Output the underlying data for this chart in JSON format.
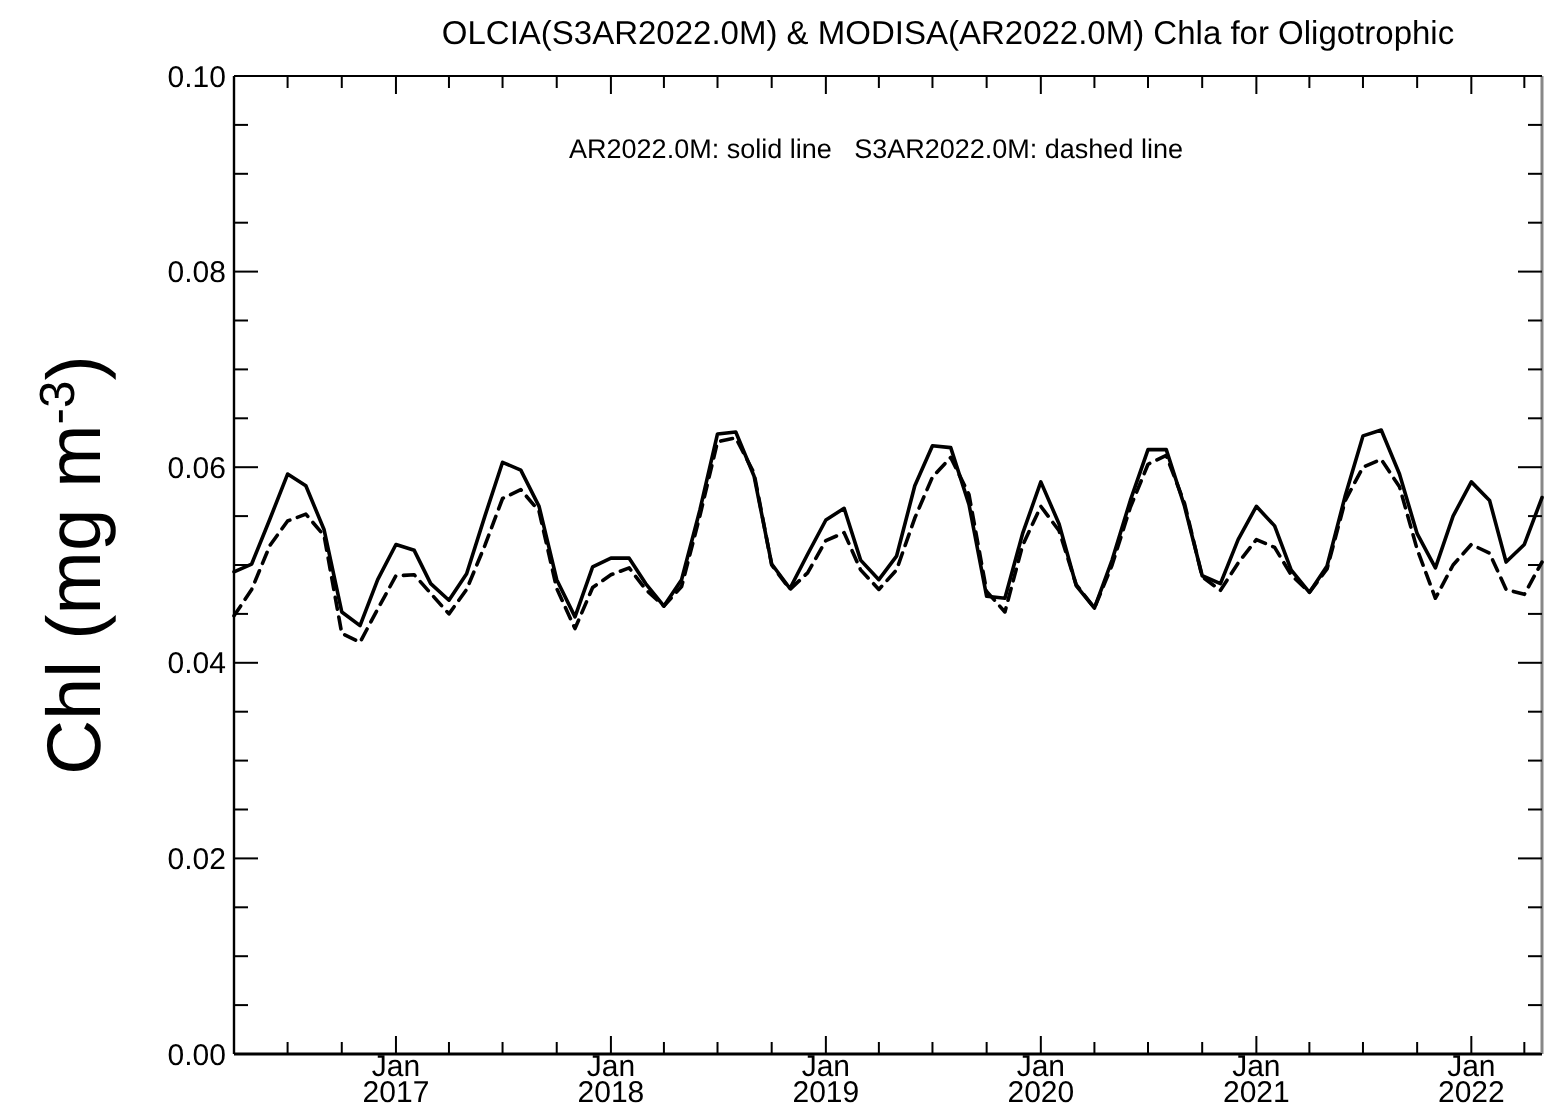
{
  "chart_data": {
    "type": "line",
    "title": "OLCIA(S3AR2022.0M) & MODISA(AR2022.0M)  Chla for Oligotrophic",
    "ylabel": "Chl (mg m$^{-3}$)",
    "annotations": [
      "AR2022.0M: solid line   S3AR2022.0M: dashed line"
    ],
    "x": [
      "2016-04",
      "2016-05",
      "2016-06",
      "2016-07",
      "2016-08",
      "2016-09",
      "2016-10",
      "2016-11",
      "2016-12",
      "2017-01",
      "2017-02",
      "2017-03",
      "2017-04",
      "2017-05",
      "2017-06",
      "2017-07",
      "2017-08",
      "2017-09",
      "2017-10",
      "2017-11",
      "2017-12",
      "2018-01",
      "2018-02",
      "2018-03",
      "2018-04",
      "2018-05",
      "2018-06",
      "2018-07",
      "2018-08",
      "2018-09",
      "2018-10",
      "2018-11",
      "2018-12",
      "2019-01",
      "2019-02",
      "2019-03",
      "2019-04",
      "2019-05",
      "2019-06",
      "2019-07",
      "2019-08",
      "2019-09",
      "2019-10",
      "2019-11",
      "2019-12",
      "2020-01",
      "2020-02",
      "2020-03",
      "2020-04",
      "2020-05",
      "2020-06",
      "2020-07",
      "2020-08",
      "2020-09",
      "2020-10",
      "2020-11",
      "2020-12",
      "2021-01",
      "2021-02",
      "2021-03",
      "2021-04",
      "2021-05",
      "2021-06",
      "2021-07",
      "2021-08",
      "2021-09",
      "2021-10",
      "2021-11",
      "2021-12",
      "2022-01",
      "2022-02",
      "2022-03",
      "2022-04",
      "2022-05"
    ],
    "series": [
      {
        "color": "#000000",
        "line_style": "solid",
        "values": [
          0.0493,
          0.0501,
          0.0547,
          0.0593,
          0.0581,
          0.0536,
          0.0452,
          0.0438,
          0.0485,
          0.0521,
          0.0515,
          0.0481,
          0.0464,
          0.0491,
          0.055,
          0.0605,
          0.0597,
          0.056,
          0.0485,
          0.0447,
          0.0498,
          0.0507,
          0.0507,
          0.0481,
          0.0458,
          0.0485,
          0.0556,
          0.0634,
          0.0636,
          0.0591,
          0.0501,
          0.0476,
          0.0511,
          0.0546,
          0.0558,
          0.0505,
          0.0485,
          0.0509,
          0.0581,
          0.0622,
          0.062,
          0.0562,
          0.0468,
          0.0466,
          0.0532,
          0.0585,
          0.0542,
          0.0479,
          0.0456,
          0.0505,
          0.0566,
          0.0618,
          0.0618,
          0.056,
          0.0489,
          0.0481,
          0.0526,
          0.056,
          0.054,
          0.0495,
          0.0472,
          0.0499,
          0.0571,
          0.0632,
          0.0638,
          0.0593,
          0.0532,
          0.0497,
          0.055,
          0.0585,
          0.0566,
          0.0503,
          0.0521,
          0.0569
        ]
      },
      {
        "color": "#000000",
        "line_style": "dashed",
        "values": [
          0.0448,
          0.0475,
          0.052,
          0.0545,
          0.0552,
          0.053,
          0.043,
          0.0421,
          0.0455,
          0.0489,
          0.049,
          0.0471,
          0.045,
          0.0475,
          0.052,
          0.0568,
          0.0577,
          0.0555,
          0.0476,
          0.0435,
          0.0477,
          0.049,
          0.0497,
          0.0475,
          0.0458,
          0.0478,
          0.055,
          0.0626,
          0.063,
          0.0594,
          0.05,
          0.0475,
          0.0492,
          0.0525,
          0.0533,
          0.0495,
          0.0475,
          0.0495,
          0.0548,
          0.059,
          0.061,
          0.0572,
          0.0473,
          0.0452,
          0.052,
          0.056,
          0.0535,
          0.048,
          0.0456,
          0.05,
          0.0559,
          0.0603,
          0.0612,
          0.0563,
          0.0488,
          0.0474,
          0.0502,
          0.0526,
          0.0518,
          0.049,
          0.0472,
          0.0496,
          0.0566,
          0.06,
          0.0608,
          0.058,
          0.0516,
          0.0466,
          0.05,
          0.0521,
          0.0512,
          0.0475,
          0.047,
          0.0503
        ]
      }
    ],
    "xlim": [
      "2016-04",
      "2022-05"
    ],
    "xticks": [
      {
        "value": "2016-07",
        "label": null
      },
      {
        "value": "2016-10",
        "label": null
      },
      {
        "value": "2017-01",
        "label": "Jan\n2017"
      },
      {
        "value": "2017-04",
        "label": null
      },
      {
        "value": "2017-07",
        "label": null
      },
      {
        "value": "2017-10",
        "label": null
      },
      {
        "value": "2018-01",
        "label": "Jan\n2018"
      },
      {
        "value": "2018-04",
        "label": null
      },
      {
        "value": "2018-07",
        "label": null
      },
      {
        "value": "2018-10",
        "label": null
      },
      {
        "value": "2019-01",
        "label": "Jan\n2019"
      },
      {
        "value": "2019-04",
        "label": null
      },
      {
        "value": "2019-07",
        "label": null
      },
      {
        "value": "2019-10",
        "label": null
      },
      {
        "value": "2020-01",
        "label": "Jan\n2020"
      },
      {
        "value": "2020-04",
        "label": null
      },
      {
        "value": "2020-07",
        "label": null
      },
      {
        "value": "2020-10",
        "label": null
      },
      {
        "value": "2021-01",
        "label": "Jan\n2021"
      },
      {
        "value": "2021-04",
        "label": null
      },
      {
        "value": "2021-07",
        "label": null
      },
      {
        "value": "2021-10",
        "label": null
      },
      {
        "value": "2022-01",
        "label": "Jan\n2022"
      },
      {
        "value": "2022-04",
        "label": null
      }
    ],
    "ylim": [
      0,
      0.1
    ],
    "yticks": [
      {
        "value": 0,
        "label": "0.00"
      },
      {
        "value": 0.005,
        "label": null
      },
      {
        "value": 0.01,
        "label": null
      },
      {
        "value": 0.015,
        "label": null
      },
      {
        "value": 0.02,
        "label": "0.02"
      },
      {
        "value": 0.025,
        "label": null
      },
      {
        "value": 0.03,
        "label": null
      },
      {
        "value": 0.035,
        "label": null
      },
      {
        "value": 0.04,
        "label": "0.04"
      },
      {
        "value": 0.045,
        "label": null
      },
      {
        "value": 0.05,
        "label": null
      },
      {
        "value": 0.055,
        "label": null
      },
      {
        "value": 0.06,
        "label": "0.06"
      },
      {
        "value": 0.065,
        "label": null
      },
      {
        "value": 0.07,
        "label": null
      },
      {
        "value": 0.075,
        "label": null
      },
      {
        "value": 0.08,
        "label": "0.08"
      },
      {
        "value": 0.085,
        "label": null
      },
      {
        "value": 0.09,
        "label": null
      },
      {
        "value": 0.095,
        "label": null
      },
      {
        "value": 0.1,
        "label": "0.10"
      }
    ],
    "grid": false,
    "marker": "none"
  }
}
